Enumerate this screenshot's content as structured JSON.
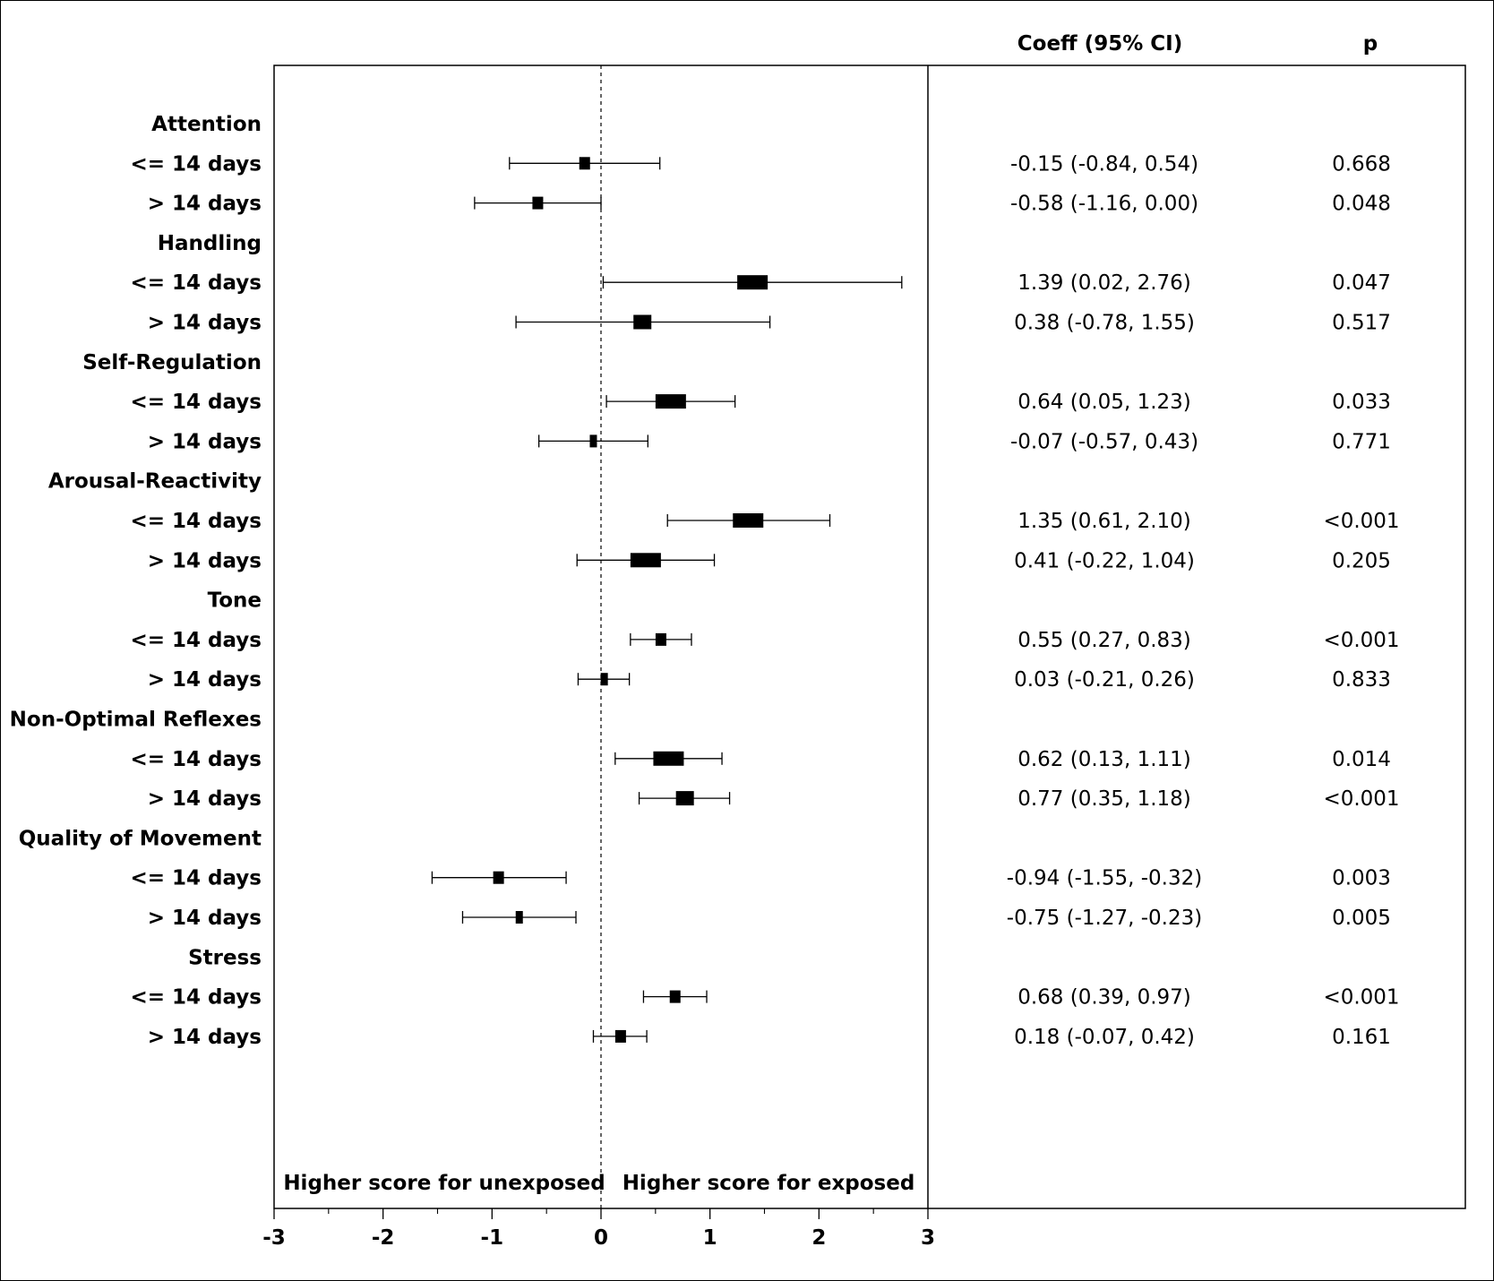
{
  "headers": {
    "coeff": "Coeff (95% CI)",
    "p": "p"
  },
  "annotations": {
    "left": "Higher score for unexposed",
    "right": "Higher score for exposed"
  },
  "colors": {
    "ink": "#000000",
    "background": "#ffffff"
  },
  "chart_data": {
    "type": "forest",
    "xlim": [
      -3,
      3
    ],
    "x_ticks": [
      "-3",
      "-2",
      "-1",
      "0",
      "1",
      "2",
      "3"
    ],
    "reference_line": 0,
    "rows": [
      {
        "label": "Attention",
        "heading": true
      },
      {
        "label": "<= 14 days",
        "est": -0.15,
        "lo": -0.84,
        "hi": 0.54,
        "ci_text": "-0.15 (-0.84, 0.54)",
        "p": "0.668",
        "marker": "small"
      },
      {
        "label": "> 14 days",
        "est": -0.58,
        "lo": -1.16,
        "hi": 0.0,
        "ci_text": "-0.58 (-1.16, 0.00)",
        "p": "0.048",
        "marker": "small"
      },
      {
        "label": "Handling",
        "heading": true
      },
      {
        "label": "<= 14 days",
        "est": 1.39,
        "lo": 0.02,
        "hi": 2.76,
        "ci_text": "1.39 (0.02, 2.76)",
        "p": "0.047",
        "marker": "large"
      },
      {
        "label": "> 14 days",
        "est": 0.38,
        "lo": -0.78,
        "hi": 1.55,
        "ci_text": "0.38 (-0.78, 1.55)",
        "p": "0.517",
        "marker": "medium"
      },
      {
        "label": "Self-Regulation",
        "heading": true
      },
      {
        "label": "<= 14 days",
        "est": 0.64,
        "lo": 0.05,
        "hi": 1.23,
        "ci_text": "0.64 (0.05, 1.23)",
        "p": "0.033",
        "marker": "large"
      },
      {
        "label": "> 14 days",
        "est": -0.07,
        "lo": -0.57,
        "hi": 0.43,
        "ci_text": "-0.07 (-0.57, 0.43)",
        "p": "0.771",
        "marker": "tiny"
      },
      {
        "label": "Arousal-Reactivity",
        "heading": true
      },
      {
        "label": "<= 14 days",
        "est": 1.35,
        "lo": 0.61,
        "hi": 2.1,
        "ci_text": "1.35 (0.61, 2.10)",
        "p": "<0.001",
        "marker": "large"
      },
      {
        "label": "> 14 days",
        "est": 0.41,
        "lo": -0.22,
        "hi": 1.04,
        "ci_text": "0.41 (-0.22, 1.04)",
        "p": "0.205",
        "marker": "large"
      },
      {
        "label": "Tone",
        "heading": true
      },
      {
        "label": "<= 14 days",
        "est": 0.55,
        "lo": 0.27,
        "hi": 0.83,
        "ci_text": "0.55 (0.27, 0.83)",
        "p": "<0.001",
        "marker": "small"
      },
      {
        "label": "> 14 days",
        "est": 0.03,
        "lo": -0.21,
        "hi": 0.26,
        "ci_text": "0.03 (-0.21, 0.26)",
        "p": "0.833",
        "marker": "tiny"
      },
      {
        "label": "Non-Optimal Reflexes",
        "heading": true
      },
      {
        "label": "<= 14 days",
        "est": 0.62,
        "lo": 0.13,
        "hi": 1.11,
        "ci_text": "0.62 (0.13, 1.11)",
        "p": "0.014",
        "marker": "large"
      },
      {
        "label": "> 14 days",
        "est": 0.77,
        "lo": 0.35,
        "hi": 1.18,
        "ci_text": "0.77 (0.35, 1.18)",
        "p": "<0.001",
        "marker": "medium"
      },
      {
        "label": "Quality of Movement",
        "heading": true
      },
      {
        "label": "<= 14 days",
        "est": -0.94,
        "lo": -1.55,
        "hi": -0.32,
        "ci_text": "-0.94 (-1.55, -0.32)",
        "p": "0.003",
        "marker": "small"
      },
      {
        "label": "> 14 days",
        "est": -0.75,
        "lo": -1.27,
        "hi": -0.23,
        "ci_text": "-0.75 (-1.27, -0.23)",
        "p": "0.005",
        "marker": "tiny"
      },
      {
        "label": "Stress",
        "heading": true
      },
      {
        "label": "<= 14 days",
        "est": 0.68,
        "lo": 0.39,
        "hi": 0.97,
        "ci_text": "0.68 (0.39, 0.97)",
        "p": "<0.001",
        "marker": "small"
      },
      {
        "label": "> 14 days",
        "est": 0.18,
        "lo": -0.07,
        "hi": 0.42,
        "ci_text": "0.18 (-0.07, 0.42)",
        "p": "0.161",
        "marker": "small"
      }
    ]
  }
}
